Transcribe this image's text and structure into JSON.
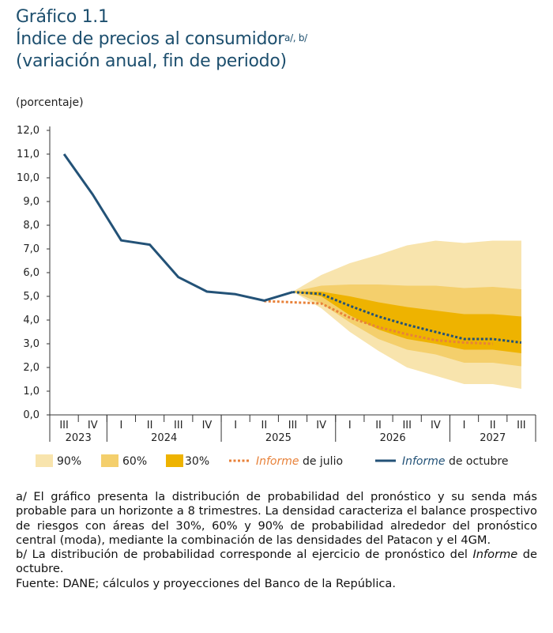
{
  "header": {
    "figure_label": "Gráfico 1.1",
    "title": "Índice de precios al consumidor",
    "title_notes": "a/, b/",
    "subtitle": "(variación anual, fin de periodo)",
    "unit": "(porcentaje)"
  },
  "chart_data": {
    "type": "line",
    "ylabel": "(porcentaje)",
    "ylim": [
      0,
      12
    ],
    "yticks": [
      "0,0",
      "1,0",
      "2,0",
      "3,0",
      "4,0",
      "5,0",
      "6,0",
      "7,0",
      "8,0",
      "9,0",
      "10,0",
      "11,0",
      "12,0"
    ],
    "quarters": [
      "III",
      "IV",
      "I",
      "II",
      "III",
      "IV",
      "I",
      "II",
      "III",
      "IV",
      "I",
      "II",
      "III",
      "IV",
      "I",
      "II",
      "III"
    ],
    "years": [
      {
        "label": "2023",
        "span": 2
      },
      {
        "label": "2024",
        "span": 4
      },
      {
        "label": "2025",
        "span": 4
      },
      {
        "label": "2026",
        "span": 4
      },
      {
        "label": "2027",
        "span": 3
      }
    ],
    "colors": {
      "band90": "#f8e4ad",
      "band60": "#f4cf6c",
      "band30": "#eeb300",
      "octubre": "#235277",
      "julio": "#e8823a"
    },
    "series": [
      {
        "name": "Informe de octubre",
        "style": "solid",
        "start": 0,
        "values": [
          11.0,
          9.3,
          7.36,
          7.18,
          5.81,
          5.2,
          5.09,
          4.82,
          5.18
        ]
      },
      {
        "name": "Informe de octubre",
        "style": "dotted",
        "start": 8,
        "values": [
          5.18,
          5.1,
          4.6,
          4.15,
          3.8,
          3.5,
          3.2,
          3.2,
          3.05
        ]
      },
      {
        "name": "Informe de julio",
        "style": "dotted",
        "start": 7,
        "values": [
          4.8,
          4.75,
          4.7,
          4.1,
          3.7,
          3.4,
          3.15,
          3.05,
          3.0
        ]
      }
    ],
    "bands": [
      {
        "name": "90%",
        "start": 8,
        "upper": [
          5.2,
          5.9,
          6.4,
          6.75,
          7.15,
          7.35,
          7.25,
          7.35,
          7.35
        ],
        "lower": [
          5.2,
          4.5,
          3.5,
          2.7,
          2.0,
          1.65,
          1.3,
          1.3,
          1.1
        ]
      },
      {
        "name": "60%",
        "start": 8,
        "upper": [
          5.2,
          5.45,
          5.5,
          5.5,
          5.45,
          5.45,
          5.35,
          5.4,
          5.3
        ],
        "lower": [
          5.2,
          4.7,
          3.9,
          3.2,
          2.75,
          2.55,
          2.2,
          2.2,
          2.05
        ]
      },
      {
        "name": "30%",
        "start": 8,
        "upper": [
          5.2,
          5.2,
          5.0,
          4.75,
          4.55,
          4.4,
          4.25,
          4.25,
          4.15
        ],
        "lower": [
          5.2,
          5.0,
          4.2,
          3.6,
          3.2,
          3.0,
          2.75,
          2.75,
          2.6
        ]
      }
    ],
    "legend": {
      "placement": "bottom",
      "b90": "90%",
      "b60": "60%",
      "b30": "30%",
      "julio_em": "Informe",
      "julio_rest": " de julio",
      "oct_em": "Informe",
      "oct_rest": " de octubre"
    }
  },
  "notes": {
    "a": "a/ El gráfico presenta la distribución de probabilidad del pronóstico y su senda más probable para un horizonte a 8 trimestres. La densidad caracteriza el balance prospectivo de riesgos con áreas del 30%, 60% y 90% de probabilidad alrededor del pronóstico central (moda), mediante la combinación de las densidades del Patacon y el 4GM.",
    "b_pre": "b/ La distribución de probabilidad corresponde al ejercicio de pronóstico del ",
    "b_em": "Informe",
    "b_post": " de octubre.",
    "source": "Fuente: DANE; cálculos y proyecciones del Banco de la República."
  }
}
